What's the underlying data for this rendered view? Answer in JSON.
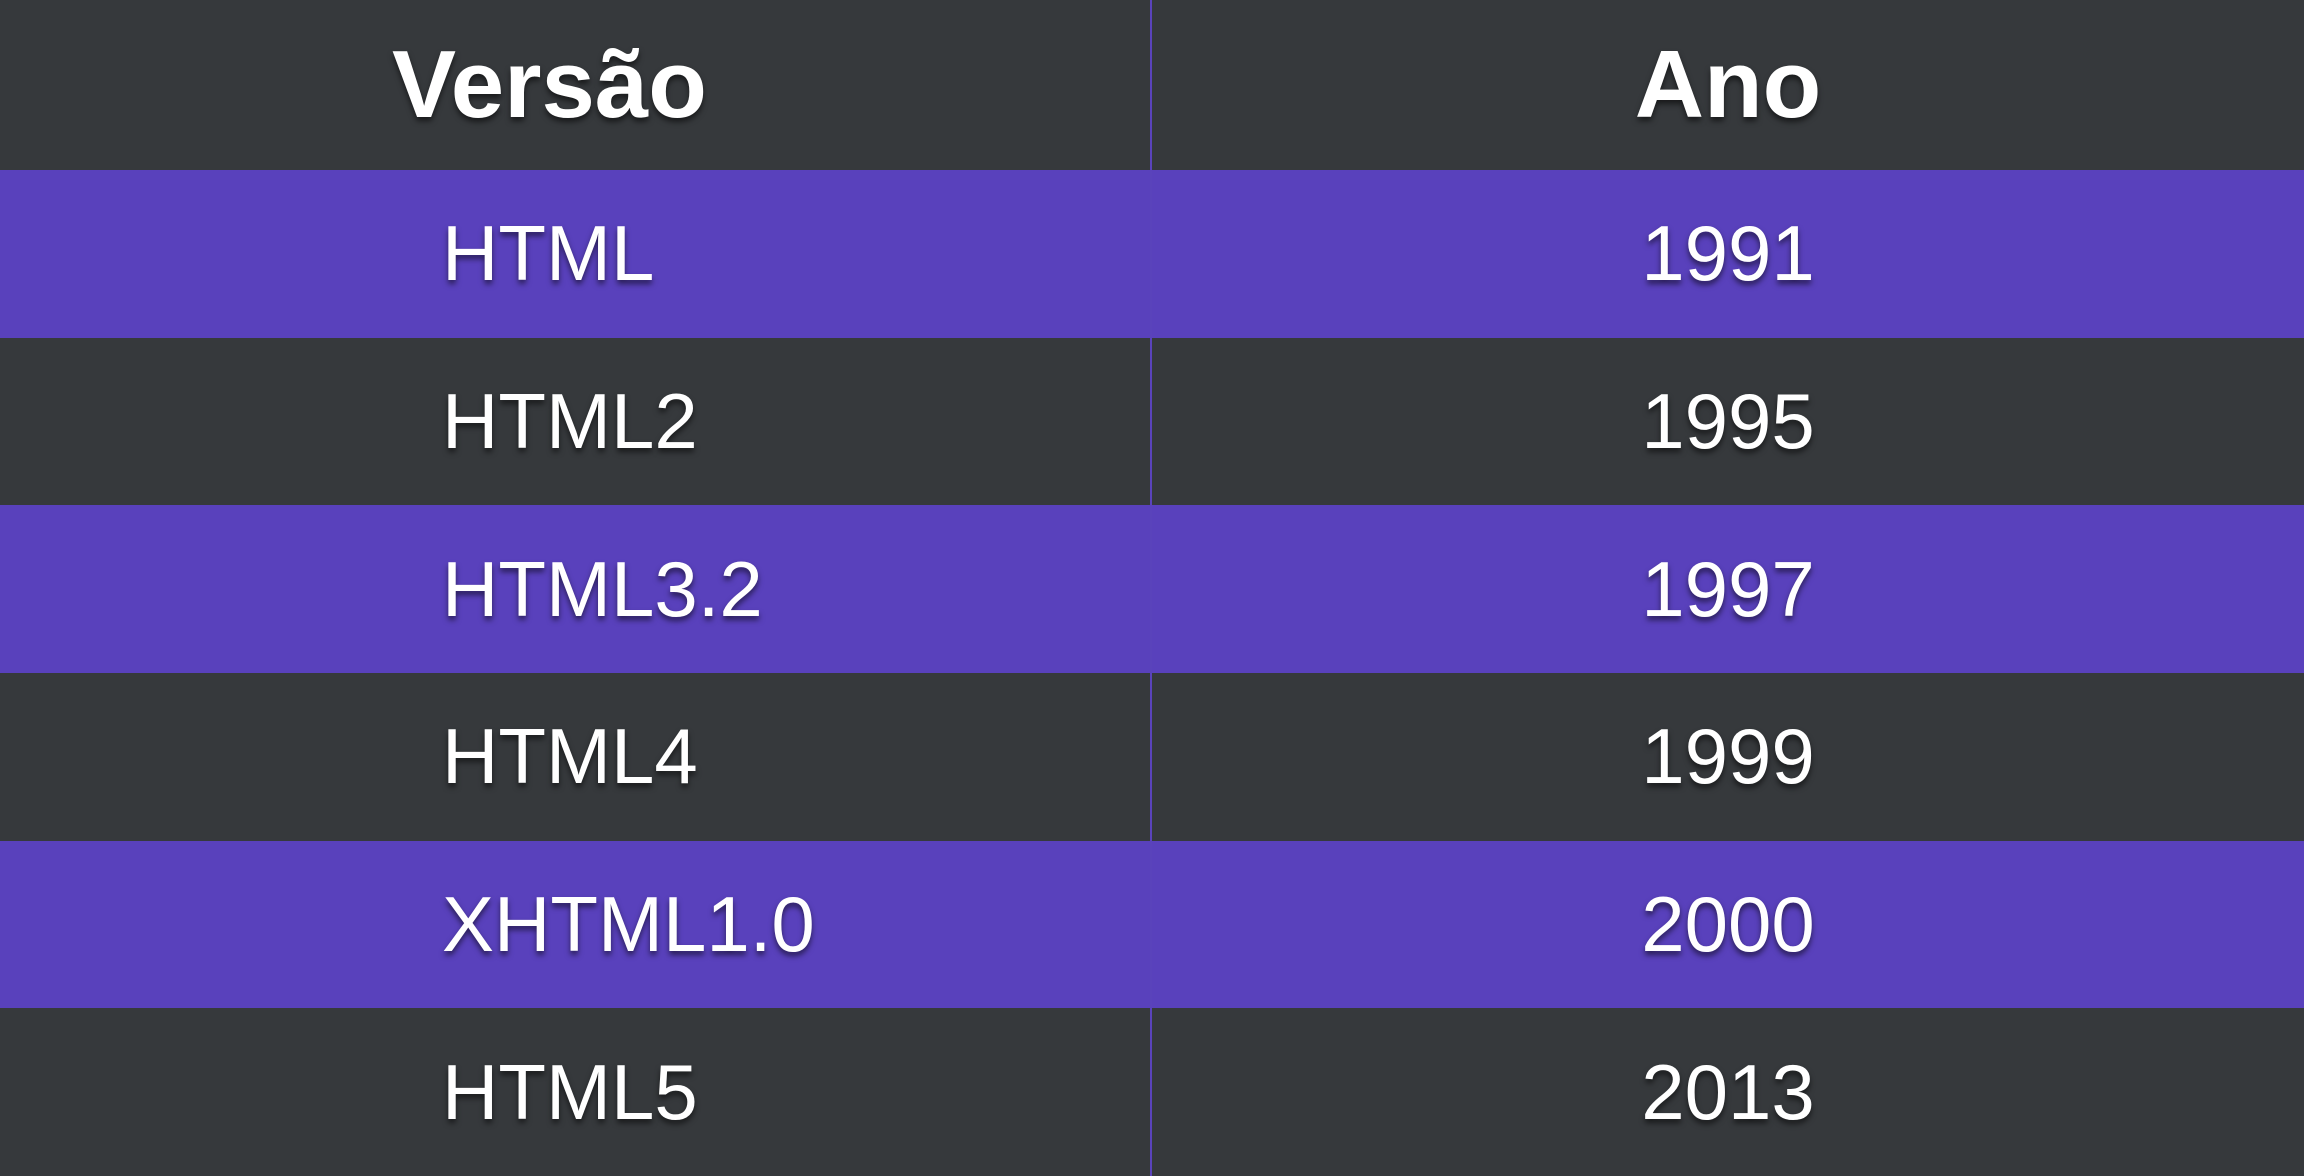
{
  "table": {
    "headers": {
      "version": "Versão",
      "year": "Ano"
    },
    "rows": [
      {
        "version": "HTML",
        "year": "1991"
      },
      {
        "version": "HTML2",
        "year": "1995"
      },
      {
        "version": "HTML3.2",
        "year": "1997"
      },
      {
        "version": "HTML4",
        "year": "1999"
      },
      {
        "version": "XHTML1.0",
        "year": "2000"
      },
      {
        "version": "HTML5",
        "year": "2013"
      }
    ]
  },
  "colors": {
    "dark_row": "#36393c",
    "purple_row": "#5941bc",
    "text": "#ffffff"
  }
}
